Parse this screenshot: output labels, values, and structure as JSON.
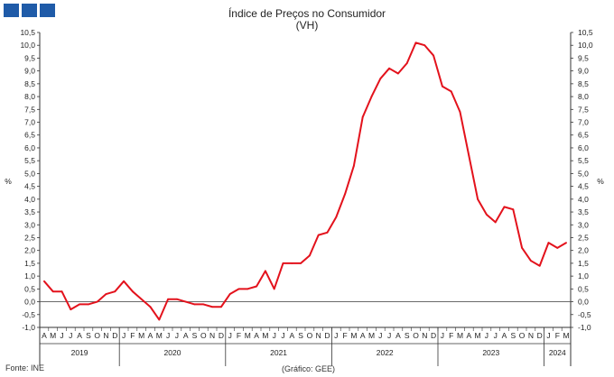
{
  "header": {
    "logo_colors": [
      "#1f5ba8",
      "#1f5ba8",
      "#1f5ba8"
    ]
  },
  "chart_data": {
    "type": "line",
    "title": "Índice de Preços no Consumidor",
    "subtitle": "(VH)",
    "ylabel": "%",
    "ylabel_right": "%",
    "ylim": [
      -1.0,
      10.5
    ],
    "ytick_step": 0.5,
    "yticks": [
      "-1,0",
      "-0,5",
      "0,0",
      "0,5",
      "1,0",
      "1,5",
      "2,0",
      "2,5",
      "3,0",
      "3,5",
      "4,0",
      "4,5",
      "5,0",
      "5,5",
      "6,0",
      "6,5",
      "7,0",
      "7,5",
      "8,0",
      "8,5",
      "9,0",
      "9,5",
      "10,0",
      "10,5"
    ],
    "grid": false,
    "line_color": "#e3121c",
    "months": [
      "A",
      "M",
      "J",
      "J",
      "A",
      "S",
      "O",
      "N",
      "D",
      "J",
      "F",
      "M",
      "A",
      "M",
      "J",
      "J",
      "A",
      "S",
      "O",
      "N",
      "D",
      "J",
      "F",
      "M",
      "A",
      "M",
      "J",
      "J",
      "A",
      "S",
      "O",
      "N",
      "D",
      "J",
      "F",
      "M",
      "A",
      "M",
      "J",
      "J",
      "A",
      "S",
      "O",
      "N",
      "D",
      "J",
      "F",
      "M",
      "A",
      "M",
      "J",
      "J",
      "A",
      "S",
      "O",
      "N",
      "D",
      "J",
      "F",
      "M"
    ],
    "years": [
      {
        "label": "2019",
        "start": 0,
        "end": 8
      },
      {
        "label": "2020",
        "start": 9,
        "end": 20
      },
      {
        "label": "2021",
        "start": 21,
        "end": 32
      },
      {
        "label": "2022",
        "start": 33,
        "end": 44
      },
      {
        "label": "2023",
        "start": 45,
        "end": 56
      },
      {
        "label": "2024",
        "start": 57,
        "end": 59
      }
    ],
    "series": [
      {
        "values": [
          0.8,
          0.4,
          0.4,
          -0.3,
          -0.1,
          -0.1,
          0.0,
          0.3,
          0.4,
          0.8,
          0.4,
          0.1,
          -0.2,
          -0.7,
          0.1,
          0.1,
          0.0,
          -0.1,
          -0.1,
          -0.2,
          -0.2,
          0.3,
          0.5,
          0.5,
          0.6,
          1.2,
          0.5,
          1.5,
          1.5,
          1.5,
          1.8,
          2.6,
          2.7,
          3.3,
          4.2,
          5.3,
          7.2,
          8.0,
          8.7,
          9.1,
          8.9,
          9.3,
          10.1,
          10.0,
          9.6,
          8.4,
          8.2,
          7.4,
          5.7,
          4.0,
          3.4,
          3.1,
          3.7,
          3.6,
          2.1,
          1.6,
          1.4,
          2.3,
          2.1,
          2.3
        ]
      }
    ],
    "source": "Fonte: INE",
    "credit": "(Gráfico: GEE)"
  }
}
